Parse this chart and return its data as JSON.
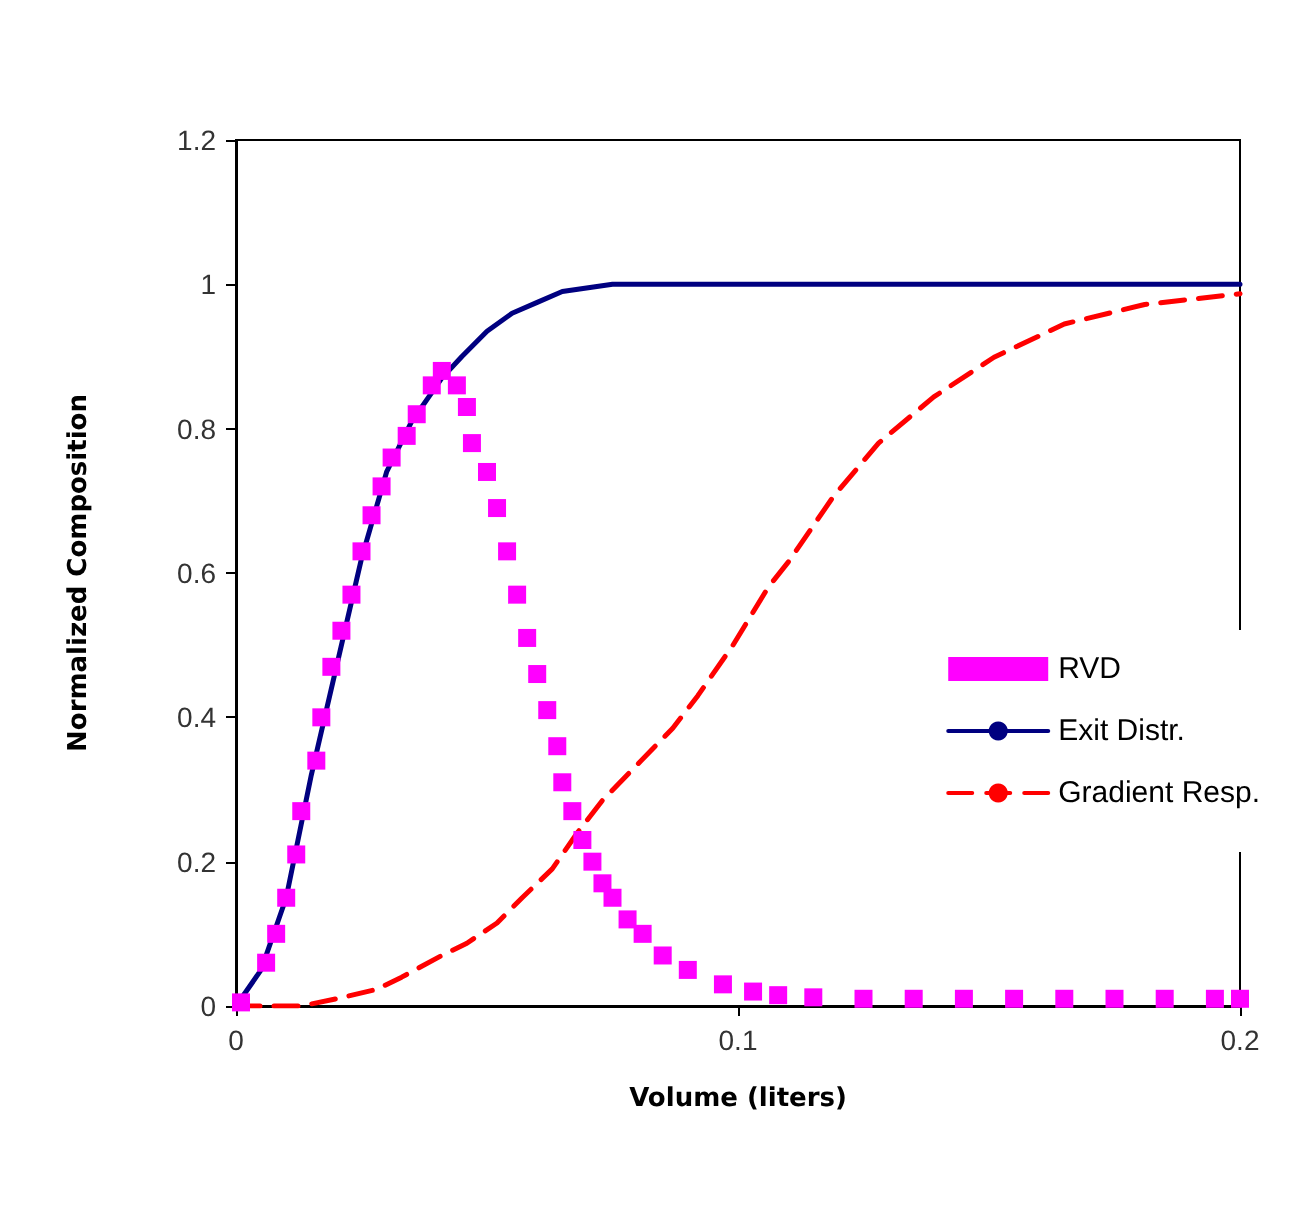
{
  "chart_data": {
    "type": "line",
    "xlabel": "Volume (liters)",
    "ylabel": "Normalized Composition",
    "xlim": [
      0,
      0.2
    ],
    "xticks": [
      0,
      0.1,
      0.2
    ],
    "ylim": [
      0,
      1.2
    ],
    "yticks": [
      0,
      0.2,
      0.4,
      0.6,
      0.8,
      1,
      1.2
    ],
    "legend": "right",
    "series": [
      {
        "name": "RVD",
        "type": "scatter",
        "marker": "square",
        "color": "#ff00ff",
        "x": [
          0.001,
          0.006,
          0.008,
          0.01,
          0.012,
          0.013,
          0.016,
          0.017,
          0.019,
          0.021,
          0.023,
          0.025,
          0.027,
          0.029,
          0.031,
          0.034,
          0.036,
          0.039,
          0.041,
          0.044,
          0.046,
          0.047,
          0.05,
          0.052,
          0.054,
          0.056,
          0.058,
          0.06,
          0.062,
          0.064,
          0.065,
          0.067,
          0.069,
          0.071,
          0.073,
          0.075,
          0.078,
          0.081,
          0.085,
          0.09,
          0.097,
          0.103,
          0.108,
          0.115,
          0.125,
          0.135,
          0.145,
          0.155,
          0.165,
          0.175,
          0.185,
          0.195,
          0.2
        ],
        "values": [
          0.005,
          0.06,
          0.1,
          0.15,
          0.21,
          0.27,
          0.34,
          0.4,
          0.47,
          0.52,
          0.57,
          0.63,
          0.68,
          0.72,
          0.76,
          0.79,
          0.82,
          0.86,
          0.88,
          0.86,
          0.83,
          0.78,
          0.74,
          0.69,
          0.63,
          0.57,
          0.51,
          0.46,
          0.41,
          0.36,
          0.31,
          0.27,
          0.23,
          0.2,
          0.17,
          0.15,
          0.12,
          0.1,
          0.07,
          0.05,
          0.03,
          0.02,
          0.015,
          0.012,
          0.01,
          0.01,
          0.01,
          0.01,
          0.01,
          0.01,
          0.01,
          0.01,
          0.01
        ]
      },
      {
        "name": "Exit Distr.",
        "type": "line",
        "line_style": "solid",
        "marker": "none",
        "color": "#000080",
        "x": [
          0,
          0.005,
          0.01,
          0.015,
          0.02,
          0.025,
          0.03,
          0.035,
          0.041,
          0.045,
          0.05,
          0.055,
          0.06,
          0.065,
          0.075,
          0.2
        ],
        "values": [
          0,
          0.05,
          0.15,
          0.32,
          0.47,
          0.62,
          0.74,
          0.81,
          0.87,
          0.9,
          0.935,
          0.96,
          0.975,
          0.99,
          1,
          1
        ]
      },
      {
        "name": "Gradient Resp.",
        "type": "line",
        "line_style": "dashed",
        "marker": "none",
        "color": "#ff0000",
        "x": [
          0,
          0.013,
          0.02,
          0.028,
          0.033,
          0.041,
          0.046,
          0.052,
          0.057,
          0.063,
          0.068,
          0.073,
          0.08,
          0.087,
          0.092,
          0.099,
          0.106,
          0.11,
          0.119,
          0.128,
          0.139,
          0.151,
          0.165,
          0.181,
          0.199,
          0.2
        ],
        "values": [
          0,
          0,
          0.01,
          0.023,
          0.04,
          0.07,
          0.087,
          0.115,
          0.15,
          0.19,
          0.24,
          0.285,
          0.335,
          0.385,
          0.43,
          0.5,
          0.58,
          0.615,
          0.706,
          0.78,
          0.844,
          0.899,
          0.945,
          0.972,
          0.986,
          0.987
        ]
      }
    ]
  }
}
